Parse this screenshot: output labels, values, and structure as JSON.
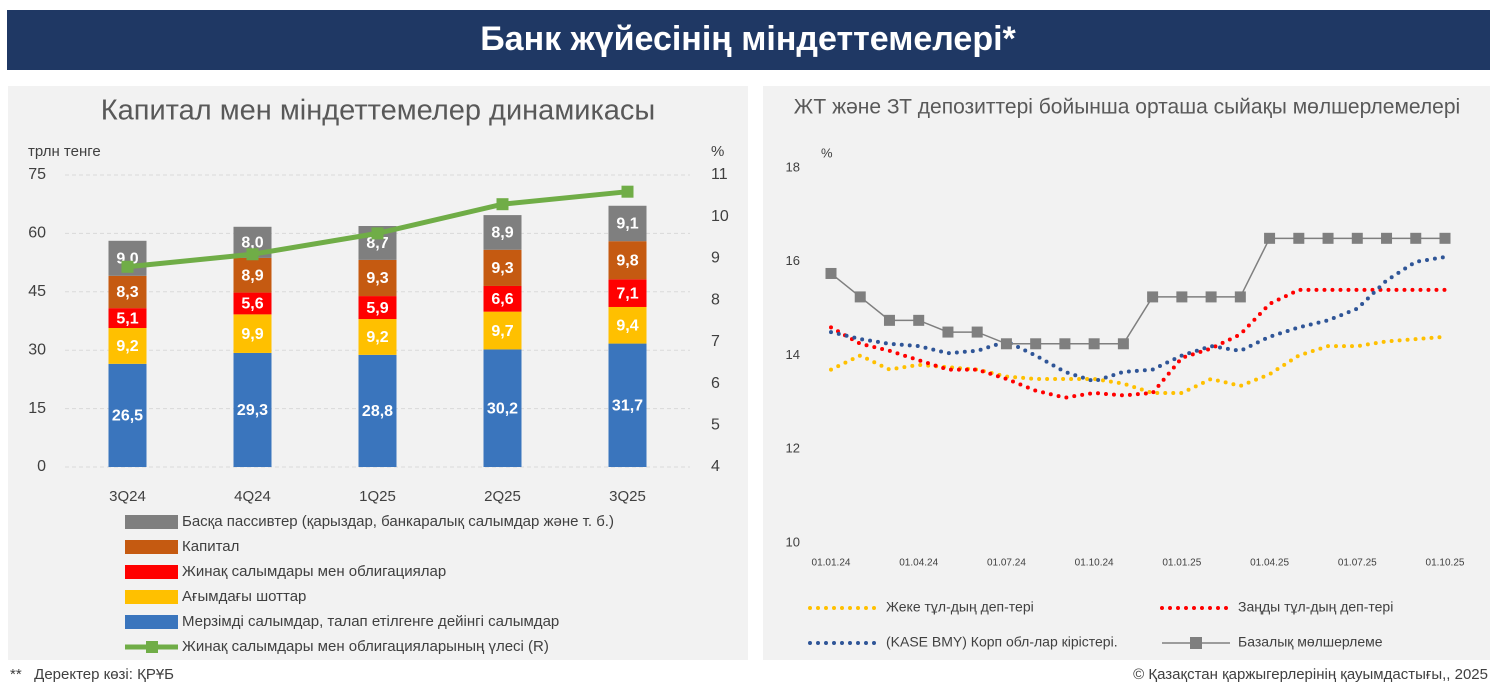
{
  "header": {
    "title": "Банк жүйесінің міндеттемелері*"
  },
  "footer": {
    "source": "**   Деректер көзі: ҚРҰБ",
    "copyright": "© Қазақстан қаржыгерлерінің қауымдастығы,, 2025"
  },
  "chart_data": [
    {
      "type": "bar",
      "stacked": true,
      "grid": true,
      "title": "Капитал мен міндеттемелер динамикасы",
      "y_label": "трлн тенге",
      "y2_label": "%",
      "categories": [
        "3Q24",
        "4Q24",
        "1Q25",
        "2Q25",
        "3Q25"
      ],
      "ylim": [
        0,
        75
      ],
      "yticks": [
        0,
        15,
        30,
        45,
        60,
        75
      ],
      "y2lim": [
        4,
        11
      ],
      "y2ticks": [
        4,
        5,
        6,
        7,
        8,
        9,
        10,
        11
      ],
      "series": [
        {
          "name": "Мерзімді салымдар, талап етілгенге дейінгі салымдар",
          "color": "#3a75bd",
          "values": [
            26.5,
            29.3,
            28.8,
            30.2,
            31.7
          ],
          "value_labels": [
            "26,5",
            "29,3",
            "28,8",
            "30,2",
            "31,7"
          ]
        },
        {
          "name": "Ағымдағы шоттар",
          "color": "#ffc000",
          "values": [
            9.2,
            9.9,
            9.2,
            9.7,
            9.4
          ],
          "value_labels": [
            "9,2",
            "9,9",
            "9,2",
            "9,7",
            "9,4"
          ]
        },
        {
          "name": "Жинақ салымдары мен облигациялар",
          "color": "#ff0000",
          "values": [
            5.1,
            5.6,
            5.9,
            6.6,
            7.1
          ],
          "value_labels": [
            "5,1",
            "5,6",
            "5,9",
            "6,6",
            "7,1"
          ]
        },
        {
          "name": "Капитал",
          "color": "#c55a11",
          "values": [
            8.3,
            8.9,
            9.3,
            9.3,
            9.8
          ],
          "value_labels": [
            "8,3",
            "8,9",
            "9,3",
            "9,3",
            "9,8"
          ]
        },
        {
          "name": "Басқа пассивтер (қарыздар, банкаралық салымдар және т. б.)",
          "color": "#7f7f7f",
          "values": [
            9.0,
            8.0,
            8.7,
            8.9,
            9.1
          ],
          "value_labels": [
            "9,0",
            "8,0",
            "8,7",
            "8,9",
            "9,1"
          ]
        },
        {
          "name": "Жинақ салымдары мен облигацияларының үлесі (R)",
          "color": "#70ad47",
          "type": "line",
          "axis": "y2",
          "marker": "square",
          "values": [
            8.8,
            9.1,
            9.6,
            10.3,
            10.6
          ]
        }
      ]
    },
    {
      "type": "line",
      "grid": false,
      "title": "ЖТ және ЗТ депозиттері бойынша орташа сыйақы мөлшерлемелері",
      "y_label": "%",
      "categories": [
        "01.01.24",
        null,
        null,
        "01.04.24",
        null,
        null,
        "01.07.24",
        null,
        null,
        "01.10.24",
        null,
        null,
        "01.01.25",
        null,
        null,
        "01.04.25",
        null,
        null,
        "01.07.25",
        null,
        null,
        "01.10.25"
      ],
      "ylim": [
        10,
        18
      ],
      "yticks": [
        10,
        12,
        14,
        16,
        18
      ],
      "series": [
        {
          "name": "Жеке тұл-дың деп-тері",
          "color": "#ffc000",
          "dash": "dotted",
          "values": [
            13.7,
            14.0,
            13.7,
            13.8,
            13.75,
            13.7,
            13.55,
            13.5,
            13.5,
            13.5,
            13.4,
            13.2,
            13.2,
            13.5,
            13.35,
            13.6,
            14.0,
            14.2,
            14.2,
            14.3,
            14.35,
            14.4
          ]
        },
        {
          "name": "Заңды тұл-дың деп-тері",
          "color": "#ff0000",
          "dash": "dotted",
          "values": [
            14.6,
            14.25,
            14.1,
            13.9,
            13.7,
            13.7,
            13.5,
            13.25,
            13.1,
            13.2,
            13.15,
            13.2,
            13.95,
            14.15,
            14.45,
            15.1,
            15.4,
            15.4,
            15.4,
            15.4,
            15.4,
            15.4
          ]
        },
        {
          "name": "(KASE BMY) Корп обл-лар кірістері.",
          "color": "#2f5597",
          "dash": "dotted",
          "values": [
            14.5,
            14.35,
            14.25,
            14.2,
            14.05,
            14.1,
            14.3,
            14.0,
            13.65,
            13.45,
            13.65,
            13.7,
            14.0,
            14.2,
            14.1,
            14.4,
            14.6,
            14.75,
            15.0,
            15.6,
            16.0,
            16.1
          ]
        },
        {
          "name": "Базалық мөлшерлеме",
          "color": "#7f7f7f",
          "marker": "square",
          "values": [
            15.75,
            15.25,
            14.75,
            14.75,
            14.5,
            14.5,
            14.25,
            14.25,
            14.25,
            14.25,
            14.25,
            15.25,
            15.25,
            15.25,
            15.25,
            16.5,
            16.5,
            16.5,
            16.5,
            16.5,
            16.5,
            16.5
          ]
        }
      ]
    }
  ]
}
